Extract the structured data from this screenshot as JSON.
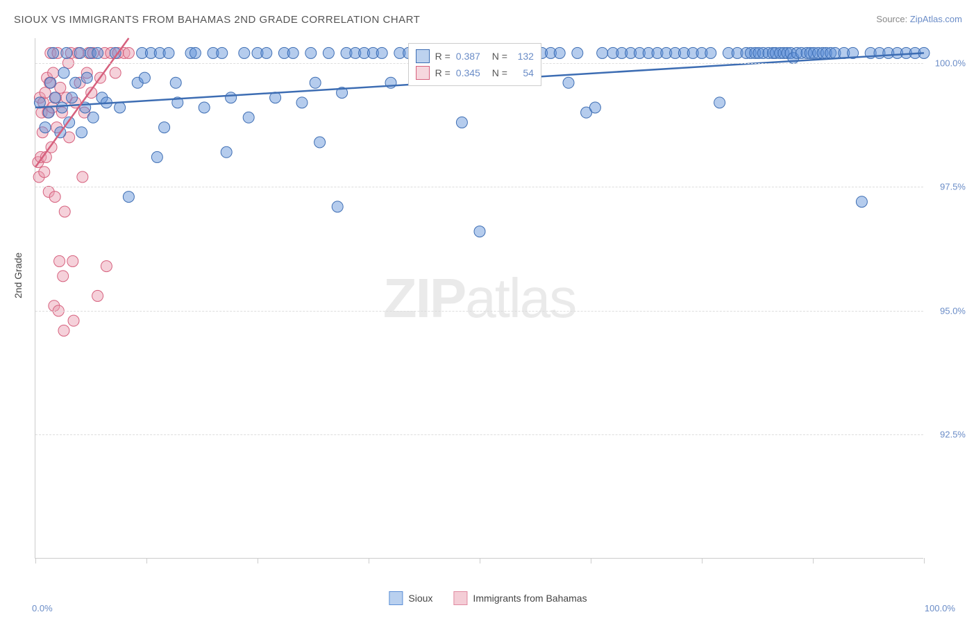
{
  "title": "SIOUX VS IMMIGRANTS FROM BAHAMAS 2ND GRADE CORRELATION CHART",
  "source_label": "Source:",
  "source_name": "ZipAtlas.com",
  "watermark_bold": "ZIP",
  "watermark_rest": "atlas",
  "chart": {
    "type": "scatter",
    "ylabel": "2nd Grade",
    "xlim": [
      0,
      100
    ],
    "ylim": [
      90,
      100.5
    ],
    "ytick_labels": [
      "92.5%",
      "95.0%",
      "97.5%",
      "100.0%"
    ],
    "ytick_values": [
      92.5,
      95.0,
      97.5,
      100.0
    ],
    "xtick_values": [
      0,
      12.5,
      25,
      37.5,
      50,
      62.5,
      75,
      87.5,
      100
    ],
    "x_start_label": "0.0%",
    "x_end_label": "100.0%",
    "background_color": "#ffffff",
    "grid_color": "#dddddd",
    "axis_color": "#cccccc",
    "marker_radius": 8,
    "marker_opacity": 0.45,
    "trend_line_width": 2.5,
    "series": [
      {
        "name": "Sioux",
        "color": "#5b8ed6",
        "stroke": "#3d6db3",
        "R": "0.387",
        "N": "132",
        "trend": {
          "x1": 0,
          "y1": 99.1,
          "x2": 100,
          "y2": 100.2
        },
        "points": [
          [
            0.5,
            99.2
          ],
          [
            1.1,
            98.7
          ],
          [
            1.5,
            99.0
          ],
          [
            1.7,
            99.6
          ],
          [
            2.0,
            100.2
          ],
          [
            2.2,
            99.3
          ],
          [
            2.8,
            98.6
          ],
          [
            3.0,
            99.1
          ],
          [
            3.2,
            99.8
          ],
          [
            3.5,
            100.2
          ],
          [
            3.8,
            98.8
          ],
          [
            4.1,
            99.3
          ],
          [
            4.5,
            99.6
          ],
          [
            5.0,
            100.2
          ],
          [
            5.2,
            98.6
          ],
          [
            5.6,
            99.1
          ],
          [
            5.8,
            99.7
          ],
          [
            6.2,
            100.2
          ],
          [
            6.5,
            98.9
          ],
          [
            7.0,
            100.2
          ],
          [
            7.5,
            99.3
          ],
          [
            8.0,
            99.2
          ],
          [
            9.0,
            100.2
          ],
          [
            9.5,
            99.1
          ],
          [
            10.5,
            97.3
          ],
          [
            11.5,
            99.6
          ],
          [
            12.0,
            100.2
          ],
          [
            12.3,
            99.7
          ],
          [
            13.0,
            100.2
          ],
          [
            13.7,
            98.1
          ],
          [
            14.0,
            100.2
          ],
          [
            14.5,
            98.7
          ],
          [
            15.0,
            100.2
          ],
          [
            15.8,
            99.6
          ],
          [
            16.0,
            99.2
          ],
          [
            17.5,
            100.2
          ],
          [
            18.0,
            100.2
          ],
          [
            19.0,
            99.1
          ],
          [
            20.0,
            100.2
          ],
          [
            21.0,
            100.2
          ],
          [
            21.5,
            98.2
          ],
          [
            22.0,
            99.3
          ],
          [
            23.5,
            100.2
          ],
          [
            24.0,
            98.9
          ],
          [
            25.0,
            100.2
          ],
          [
            26.0,
            100.2
          ],
          [
            27.0,
            99.3
          ],
          [
            28.0,
            100.2
          ],
          [
            29.0,
            100.2
          ],
          [
            30.0,
            99.2
          ],
          [
            31.0,
            100.2
          ],
          [
            31.5,
            99.6
          ],
          [
            32.0,
            98.4
          ],
          [
            33.0,
            100.2
          ],
          [
            34.0,
            97.1
          ],
          [
            34.5,
            99.4
          ],
          [
            35.0,
            100.2
          ],
          [
            36.0,
            100.2
          ],
          [
            37.0,
            100.2
          ],
          [
            38.0,
            100.2
          ],
          [
            39.0,
            100.2
          ],
          [
            40.0,
            99.6
          ],
          [
            41.0,
            100.2
          ],
          [
            42.0,
            100.2
          ],
          [
            43.5,
            100.2
          ],
          [
            45.0,
            100.2
          ],
          [
            46.0,
            100.2
          ],
          [
            47.0,
            100.2
          ],
          [
            48.0,
            98.8
          ],
          [
            49.0,
            100.2
          ],
          [
            50.0,
            96.6
          ],
          [
            51.0,
            100.2
          ],
          [
            52.0,
            100.2
          ],
          [
            53.0,
            100.2
          ],
          [
            55.0,
            100.2
          ],
          [
            56.0,
            100.2
          ],
          [
            57.0,
            100.2
          ],
          [
            58.0,
            100.2
          ],
          [
            59.0,
            100.2
          ],
          [
            60.0,
            99.6
          ],
          [
            61.0,
            100.2
          ],
          [
            62.0,
            99.0
          ],
          [
            63.0,
            99.1
          ],
          [
            63.8,
            100.2
          ],
          [
            65.0,
            100.2
          ],
          [
            66.0,
            100.2
          ],
          [
            67.0,
            100.2
          ],
          [
            68.0,
            100.2
          ],
          [
            69.0,
            100.2
          ],
          [
            70.0,
            100.2
          ],
          [
            71.0,
            100.2
          ],
          [
            72.0,
            100.2
          ],
          [
            73.0,
            100.2
          ],
          [
            74.0,
            100.2
          ],
          [
            75.0,
            100.2
          ],
          [
            76.0,
            100.2
          ],
          [
            77.0,
            99.2
          ],
          [
            78.0,
            100.2
          ],
          [
            79.0,
            100.2
          ],
          [
            80.0,
            100.2
          ],
          [
            80.5,
            100.2
          ],
          [
            81.0,
            100.2
          ],
          [
            81.4,
            100.2
          ],
          [
            81.9,
            100.2
          ],
          [
            82.5,
            100.2
          ],
          [
            83.0,
            100.2
          ],
          [
            83.3,
            100.2
          ],
          [
            83.8,
            100.2
          ],
          [
            84.2,
            100.2
          ],
          [
            84.6,
            100.2
          ],
          [
            85.0,
            100.2
          ],
          [
            85.3,
            100.1
          ],
          [
            85.7,
            100.2
          ],
          [
            86.2,
            100.2
          ],
          [
            86.8,
            100.2
          ],
          [
            87.2,
            100.2
          ],
          [
            87.6,
            100.2
          ],
          [
            88.1,
            100.2
          ],
          [
            88.6,
            100.2
          ],
          [
            89.0,
            100.2
          ],
          [
            89.5,
            100.2
          ],
          [
            90.0,
            100.2
          ],
          [
            91.0,
            100.2
          ],
          [
            92.0,
            100.2
          ],
          [
            93.0,
            97.2
          ],
          [
            94.0,
            100.2
          ],
          [
            95.0,
            100.2
          ],
          [
            96.0,
            100.2
          ],
          [
            97.0,
            100.2
          ],
          [
            98.0,
            100.2
          ],
          [
            99.0,
            100.2
          ],
          [
            100.0,
            100.2
          ]
        ]
      },
      {
        "name": "Immigrants from Bahamas",
        "color": "#e89aac",
        "stroke": "#d6607d",
        "R": "0.345",
        "N": "54",
        "trend": {
          "x1": 0,
          "y1": 97.9,
          "x2": 10.5,
          "y2": 100.5
        },
        "points": [
          [
            0.3,
            98.0
          ],
          [
            0.4,
            97.7
          ],
          [
            0.5,
            99.3
          ],
          [
            0.6,
            98.1
          ],
          [
            0.7,
            99.0
          ],
          [
            0.8,
            98.6
          ],
          [
            0.9,
            99.2
          ],
          [
            1.0,
            97.8
          ],
          [
            1.1,
            99.4
          ],
          [
            1.2,
            98.1
          ],
          [
            1.3,
            99.7
          ],
          [
            1.4,
            99.0
          ],
          [
            1.5,
            97.4
          ],
          [
            1.6,
            99.6
          ],
          [
            1.7,
            100.2
          ],
          [
            1.8,
            98.3
          ],
          [
            1.9,
            99.1
          ],
          [
            2.0,
            99.8
          ],
          [
            2.1,
            95.1
          ],
          [
            2.2,
            97.3
          ],
          [
            2.3,
            99.3
          ],
          [
            2.4,
            98.7
          ],
          [
            2.5,
            100.2
          ],
          [
            2.6,
            95.0
          ],
          [
            2.8,
            99.5
          ],
          [
            3.0,
            99.0
          ],
          [
            3.1,
            95.7
          ],
          [
            3.3,
            97.0
          ],
          [
            3.5,
            99.3
          ],
          [
            3.7,
            100.0
          ],
          [
            3.8,
            98.5
          ],
          [
            4.0,
            100.2
          ],
          [
            4.3,
            94.8
          ],
          [
            4.5,
            99.2
          ],
          [
            4.8,
            100.2
          ],
          [
            5.0,
            99.6
          ],
          [
            5.3,
            97.7
          ],
          [
            5.5,
            99.0
          ],
          [
            5.8,
            99.8
          ],
          [
            6.0,
            100.2
          ],
          [
            6.3,
            99.4
          ],
          [
            6.5,
            100.2
          ],
          [
            7.0,
            95.3
          ],
          [
            7.3,
            99.7
          ],
          [
            7.8,
            100.2
          ],
          [
            8.0,
            95.9
          ],
          [
            8.5,
            100.2
          ],
          [
            9.0,
            99.8
          ],
          [
            9.3,
            100.2
          ],
          [
            10.0,
            100.2
          ],
          [
            10.5,
            100.2
          ],
          [
            3.2,
            94.6
          ],
          [
            2.7,
            96.0
          ],
          [
            4.2,
            96.0
          ]
        ]
      }
    ]
  },
  "legend_bottom": {
    "items": [
      {
        "label": "Sioux",
        "fill": "#b9d0ef",
        "stroke": "#5b8ed6"
      },
      {
        "label": "Immigrants from Bahamas",
        "fill": "#f4cdd6",
        "stroke": "#e089a0"
      }
    ]
  }
}
